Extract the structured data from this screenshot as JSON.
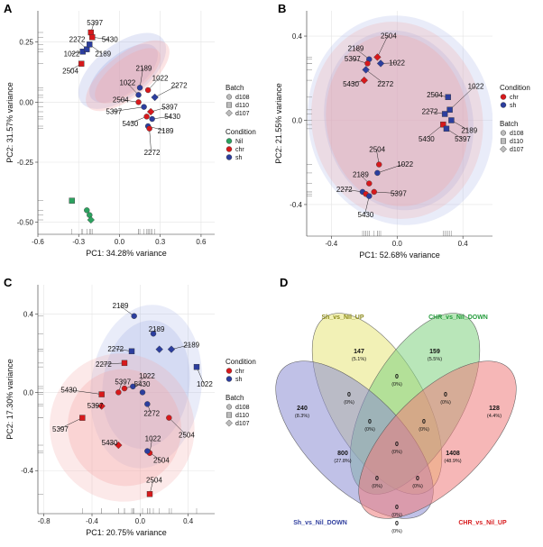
{
  "colors": {
    "nil": "#2ca25f",
    "chr": "#d7191c",
    "sh": "#2c3e9e",
    "chr_fill": "#f4a6a6",
    "sh_fill": "#a9b3e6"
  },
  "chart_data": [
    {
      "panel": "A",
      "type": "scatter",
      "xlabel": "PC1: 34.28% variance",
      "ylabel": "PC2: 31.57% variance",
      "xlim": [
        -0.6,
        0.7
      ],
      "ylim": [
        -0.55,
        0.38
      ],
      "xticks": [
        -0.6,
        -0.3,
        0.0,
        0.3,
        0.6
      ],
      "xtick_labels": [
        "-0.6",
        "-0.3",
        "0.0",
        "0.3",
        "0.6"
      ],
      "yticks": [
        -0.5,
        -0.25,
        0.0,
        0.25
      ],
      "ytick_labels": [
        "-0.50",
        "-0.25",
        "0.00",
        "0.25"
      ],
      "legend_batch": {
        "title": "Batch",
        "items": [
          "d108",
          "d110",
          "d107"
        ]
      },
      "legend_condition": {
        "title": "Condition",
        "items": [
          "Nil",
          "chr",
          "sh"
        ]
      },
      "ellipses": [
        {
          "cond": "sh",
          "cx": 0.02,
          "cy": 0.13,
          "rx": 0.38,
          "ry": 0.11,
          "angle": -38,
          "opacity": 0.3
        },
        {
          "cond": "sh",
          "cx": 0.03,
          "cy": 0.12,
          "rx": 0.3,
          "ry": 0.08,
          "angle": -38,
          "opacity": 0.35
        },
        {
          "cond": "chr",
          "cx": 0.06,
          "cy": 0.11,
          "rx": 0.37,
          "ry": 0.09,
          "angle": -38,
          "opacity": 0.3
        },
        {
          "cond": "chr",
          "cx": 0.06,
          "cy": 0.11,
          "rx": 0.29,
          "ry": 0.07,
          "angle": -38,
          "opacity": 0.3
        }
      ],
      "points": [
        {
          "x": -0.21,
          "y": 0.29,
          "cond": "chr",
          "batch": "d110",
          "label": "5397",
          "lx": -0.24,
          "ly": 0.32
        },
        {
          "x": -0.2,
          "y": 0.27,
          "cond": "chr",
          "batch": "d110",
          "label": "5430",
          "lx": -0.13,
          "ly": 0.25
        },
        {
          "x": -0.27,
          "y": 0.21,
          "cond": "sh",
          "batch": "d110",
          "label": "1022",
          "lx": -0.41,
          "ly": 0.19
        },
        {
          "x": -0.24,
          "y": 0.22,
          "cond": "sh",
          "batch": "d110",
          "label": "2272",
          "lx": -0.37,
          "ly": 0.25
        },
        {
          "x": -0.22,
          "y": 0.24,
          "cond": "sh",
          "batch": "d110",
          "label": "2189",
          "lx": -0.18,
          "ly": 0.19
        },
        {
          "x": -0.28,
          "y": 0.16,
          "cond": "chr",
          "batch": "d110",
          "label": "2504",
          "lx": -0.42,
          "ly": 0.12
        },
        {
          "x": 0.15,
          "y": 0.06,
          "cond": "sh",
          "batch": "d108",
          "label": "2189",
          "lx": 0.12,
          "ly": 0.13
        },
        {
          "x": 0.14,
          "y": 0.03,
          "cond": "sh",
          "batch": "d108",
          "label": "1022",
          "lx": 0.0,
          "ly": 0.07
        },
        {
          "x": 0.21,
          "y": 0.05,
          "cond": "chr",
          "batch": "d108",
          "label": "1022",
          "lx": 0.24,
          "ly": 0.09
        },
        {
          "x": 0.26,
          "y": 0.02,
          "cond": "sh",
          "batch": "d107",
          "label": "2272",
          "lx": 0.38,
          "ly": 0.06
        },
        {
          "x": 0.14,
          "y": 0.0,
          "cond": "chr",
          "batch": "d108",
          "label": "2504",
          "lx": -0.05,
          "ly": 0.0
        },
        {
          "x": 0.18,
          "y": -0.02,
          "cond": "sh",
          "batch": "d108",
          "label": "5397",
          "lx": -0.1,
          "ly": -0.05
        },
        {
          "x": 0.23,
          "y": -0.04,
          "cond": "chr",
          "batch": "d107",
          "label": "5397",
          "lx": 0.31,
          "ly": -0.03
        },
        {
          "x": 0.2,
          "y": -0.06,
          "cond": "chr",
          "batch": "d108",
          "label": "5430",
          "lx": 0.02,
          "ly": -0.1
        },
        {
          "x": 0.24,
          "y": -0.07,
          "cond": "sh",
          "batch": "d108",
          "label": "5430",
          "lx": 0.33,
          "ly": -0.07
        },
        {
          "x": 0.21,
          "y": -0.1,
          "cond": "sh",
          "batch": "d108",
          "label": "2189",
          "lx": 0.28,
          "ly": -0.13
        },
        {
          "x": 0.22,
          "y": -0.11,
          "cond": "chr",
          "batch": "d108",
          "label": "2272",
          "lx": 0.18,
          "ly": -0.22
        },
        {
          "x": -0.35,
          "y": -0.41,
          "cond": "nil",
          "batch": "d110"
        },
        {
          "x": -0.24,
          "y": -0.45,
          "cond": "nil",
          "batch": "d108"
        },
        {
          "x": -0.22,
          "y": -0.47,
          "cond": "nil",
          "batch": "d108"
        },
        {
          "x": -0.21,
          "y": -0.49,
          "cond": "nil",
          "batch": "d107"
        }
      ]
    },
    {
      "panel": "B",
      "type": "scatter",
      "xlabel": "PC1: 52.68% variance",
      "ylabel": "PC2: 21.55% variance",
      "xlim": [
        -0.55,
        0.58
      ],
      "ylim": [
        -0.55,
        0.52
      ],
      "xticks": [
        -0.4,
        0.0,
        0.4
      ],
      "xtick_labels": [
        "-0.4",
        "0.0",
        "0.4"
      ],
      "yticks": [
        -0.4,
        0.0,
        0.4
      ],
      "ytick_labels": [
        "-0.4",
        "0.0",
        "0.4"
      ],
      "legend_condition": {
        "title": "Condition",
        "items": [
          "chr",
          "sh"
        ]
      },
      "legend_batch": {
        "title": "Batch",
        "items": [
          "d108",
          "d110",
          "d107"
        ]
      },
      "ellipses": [
        {
          "cond": "sh",
          "cx": 0.02,
          "cy": 0.0,
          "rx": 0.56,
          "ry": 0.5,
          "angle": -12,
          "opacity": 0.25
        },
        {
          "cond": "sh",
          "cx": 0.01,
          "cy": 0.0,
          "rx": 0.45,
          "ry": 0.43,
          "angle": -12,
          "opacity": 0.3
        },
        {
          "cond": "chr",
          "cx": 0.0,
          "cy": 0.0,
          "rx": 0.52,
          "ry": 0.47,
          "angle": -10,
          "opacity": 0.25
        },
        {
          "cond": "chr",
          "cx": 0.0,
          "cy": 0.0,
          "rx": 0.43,
          "ry": 0.41,
          "angle": -10,
          "opacity": 0.3
        }
      ],
      "points": [
        {
          "x": -0.17,
          "y": 0.29,
          "cond": "sh",
          "batch": "d108",
          "label": "2189",
          "lx": -0.3,
          "ly": 0.33
        },
        {
          "x": -0.12,
          "y": 0.3,
          "cond": "chr",
          "batch": "d107",
          "label": "2504",
          "lx": -0.1,
          "ly": 0.39
        },
        {
          "x": -0.18,
          "y": 0.27,
          "cond": "chr",
          "batch": "d108",
          "label": "5397",
          "lx": -0.32,
          "ly": 0.28
        },
        {
          "x": -0.1,
          "y": 0.27,
          "cond": "sh",
          "batch": "d107",
          "label": "1022",
          "lx": -0.05,
          "ly": 0.26
        },
        {
          "x": -0.19,
          "y": 0.24,
          "cond": "sh",
          "batch": "d107",
          "label": "2272",
          "lx": -0.12,
          "ly": 0.16
        },
        {
          "x": -0.2,
          "y": 0.19,
          "cond": "chr",
          "batch": "d107",
          "label": "5430",
          "lx": -0.33,
          "ly": 0.16
        },
        {
          "x": 0.31,
          "y": 0.11,
          "cond": "sh",
          "batch": "d110",
          "label": "2504",
          "lx": 0.18,
          "ly": 0.11
        },
        {
          "x": 0.32,
          "y": 0.05,
          "cond": "sh",
          "batch": "d110",
          "label": "1022",
          "lx": 0.43,
          "ly": 0.15
        },
        {
          "x": 0.29,
          "y": 0.03,
          "cond": "sh",
          "batch": "d110",
          "label": "2272",
          "lx": 0.15,
          "ly": 0.03
        },
        {
          "x": 0.33,
          "y": 0.0,
          "cond": "sh",
          "batch": "d110",
          "label": "2189",
          "lx": 0.39,
          "ly": -0.06
        },
        {
          "x": 0.28,
          "y": -0.02,
          "cond": "chr",
          "batch": "d110",
          "label": "5430",
          "lx": 0.13,
          "ly": -0.1
        },
        {
          "x": 0.3,
          "y": -0.04,
          "cond": "sh",
          "batch": "d110",
          "label": "5397",
          "lx": 0.35,
          "ly": -0.1
        },
        {
          "x": -0.11,
          "y": -0.21,
          "cond": "chr",
          "batch": "d108",
          "label": "2504",
          "lx": -0.17,
          "ly": -0.15
        },
        {
          "x": -0.12,
          "y": -0.25,
          "cond": "sh",
          "batch": "d108",
          "label": "1022",
          "lx": 0.0,
          "ly": -0.22
        },
        {
          "x": -0.17,
          "y": -0.3,
          "cond": "chr",
          "batch": "d108",
          "label": "2189",
          "lx": -0.27,
          "ly": -0.27
        },
        {
          "x": -0.21,
          "y": -0.34,
          "cond": "sh",
          "batch": "d108",
          "label": "2272",
          "lx": -0.37,
          "ly": -0.34
        },
        {
          "x": -0.19,
          "y": -0.35,
          "cond": "chr",
          "batch": "d108"
        },
        {
          "x": -0.14,
          "y": -0.34,
          "cond": "chr",
          "batch": "d108",
          "label": "5397",
          "lx": -0.04,
          "ly": -0.36
        },
        {
          "x": -0.17,
          "y": -0.36,
          "cond": "sh",
          "batch": "d108",
          "label": "5430",
          "lx": -0.24,
          "ly": -0.46
        }
      ]
    },
    {
      "panel": "C",
      "type": "scatter",
      "xlabel": "PC1: 20.75% variance",
      "ylabel": "PC2: 17.30% variance",
      "xlim": [
        -0.85,
        0.62
      ],
      "ylim": [
        -0.62,
        0.55
      ],
      "xticks": [
        -0.8,
        -0.4,
        0.0,
        0.4
      ],
      "xtick_labels": [
        "-0.8",
        "-0.4",
        "0.0",
        "0.4"
      ],
      "yticks": [
        -0.4,
        0.0,
        0.4
      ],
      "ytick_labels": [
        "-0.4",
        "0.0",
        "0.4"
      ],
      "legend_condition": {
        "title": "Condition",
        "items": [
          "chr",
          "sh"
        ]
      },
      "legend_batch": {
        "title": "Batch",
        "items": [
          "d108",
          "d110",
          "d107"
        ]
      },
      "ellipses": [
        {
          "cond": "sh",
          "cx": 0.05,
          "cy": 0.03,
          "rx": 0.46,
          "ry": 0.42,
          "angle": 8,
          "opacity": 0.25
        },
        {
          "cond": "sh",
          "cx": 0.05,
          "cy": 0.04,
          "rx": 0.36,
          "ry": 0.33,
          "angle": 8,
          "opacity": 0.3
        },
        {
          "cond": "chr",
          "cx": -0.15,
          "cy": -0.18,
          "rx": 0.6,
          "ry": 0.38,
          "angle": -20,
          "opacity": 0.25
        },
        {
          "cond": "chr",
          "cx": -0.13,
          "cy": -0.18,
          "rx": 0.47,
          "ry": 0.3,
          "angle": -20,
          "opacity": 0.3
        }
      ],
      "points": [
        {
          "x": -0.05,
          "y": 0.39,
          "cond": "sh",
          "batch": "d108",
          "label": "2189",
          "lx": -0.23,
          "ly": 0.43
        },
        {
          "x": 0.11,
          "y": 0.3,
          "cond": "sh",
          "batch": "d108",
          "label": "2189",
          "lx": 0.07,
          "ly": 0.31
        },
        {
          "x": -0.07,
          "y": 0.21,
          "cond": "sh",
          "batch": "d110",
          "label": "2272",
          "lx": -0.27,
          "ly": 0.21
        },
        {
          "x": 0.16,
          "y": 0.22,
          "cond": "sh",
          "batch": "d107",
          "label": "",
          "lx": 0,
          "ly": 0
        },
        {
          "x": 0.26,
          "y": 0.22,
          "cond": "sh",
          "batch": "d107",
          "label": "2189",
          "lx": 0.36,
          "ly": 0.23
        },
        {
          "x": -0.13,
          "y": 0.15,
          "cond": "chr",
          "batch": "d110",
          "label": "2272",
          "lx": -0.37,
          "ly": 0.13
        },
        {
          "x": 0.47,
          "y": 0.13,
          "cond": "sh",
          "batch": "d110",
          "label": "1022",
          "lx": 0.47,
          "ly": 0.03
        },
        {
          "x": -0.06,
          "y": 0.03,
          "cond": "sh",
          "batch": "d108",
          "label": "1022",
          "lx": -0.01,
          "ly": 0.07
        },
        {
          "x": -0.32,
          "y": -0.01,
          "cond": "chr",
          "batch": "d110",
          "label": "5430",
          "lx": -0.66,
          "ly": 0.0
        },
        {
          "x": -0.18,
          "y": 0.0,
          "cond": "chr",
          "batch": "d108",
          "label": "5397",
          "lx": -0.21,
          "ly": 0.04
        },
        {
          "x": -0.13,
          "y": 0.02,
          "cond": "chr",
          "batch": "d108",
          "label": "5430",
          "lx": -0.05,
          "ly": 0.03
        },
        {
          "x": 0.02,
          "y": 0.0,
          "cond": "sh",
          "batch": "d108"
        },
        {
          "x": -0.32,
          "y": -0.07,
          "cond": "chr",
          "batch": "d107",
          "label": "5397",
          "lx": -0.44,
          "ly": -0.08
        },
        {
          "x": 0.06,
          "y": -0.06,
          "cond": "sh",
          "batch": "d108",
          "label": "2272",
          "lx": 0.03,
          "ly": -0.12
        },
        {
          "x": 0.24,
          "y": -0.13,
          "cond": "chr",
          "batch": "d108",
          "label": "2504",
          "lx": 0.32,
          "ly": -0.23
        },
        {
          "x": -0.48,
          "y": -0.13,
          "cond": "chr",
          "batch": "d110",
          "label": "5397",
          "lx": -0.73,
          "ly": -0.2
        },
        {
          "x": -0.18,
          "y": -0.27,
          "cond": "chr",
          "batch": "d107",
          "label": "5430",
          "lx": -0.32,
          "ly": -0.27
        },
        {
          "x": 0.08,
          "y": -0.31,
          "cond": "chr",
          "batch": "d108",
          "label": "1022",
          "lx": 0.04,
          "ly": -0.25
        },
        {
          "x": 0.06,
          "y": -0.3,
          "cond": "sh",
          "batch": "d108",
          "label": "2504",
          "lx": 0.11,
          "ly": -0.36
        },
        {
          "x": 0.08,
          "y": -0.52,
          "cond": "chr",
          "batch": "d110",
          "label": "2504",
          "lx": 0.05,
          "ly": -0.46
        }
      ]
    },
    {
      "panel": "D",
      "type": "venn",
      "sets": [
        {
          "name": "Sh_vs_Nil_UP",
          "color": "#e8e67a",
          "text_color": "#8c8a1c"
        },
        {
          "name": "CHR_vs_Nil_DOWN",
          "color": "#7fd17f",
          "text_color": "#249c3c"
        },
        {
          "name": "Sh_vs_Nil_DOWN",
          "color": "#8d8ed4",
          "text_color": "#2f3e9e"
        },
        {
          "name": "CHR_vs_Nil_UP",
          "color": "#ef7b7b",
          "text_color": "#d7191c"
        }
      ],
      "regions": [
        {
          "id": "sh_down_only",
          "count": "240",
          "pct": "(8.3%)",
          "bold": true
        },
        {
          "id": "sh_up_only",
          "count": "147",
          "pct": "(5.1%)",
          "bold": true
        },
        {
          "id": "chr_down_only",
          "count": "159",
          "pct": "(5.5%)",
          "bold": true
        },
        {
          "id": "chr_up_only",
          "count": "128",
          "pct": "(4.4%)",
          "bold": true
        },
        {
          "id": "shdown_chrdown",
          "count": "800",
          "pct": "(27.8%)",
          "bold": true
        },
        {
          "id": "shup_chrup",
          "count": "1408",
          "pct": "(48.9%)",
          "bold": true
        },
        {
          "id": "shup_shdown",
          "count": "0",
          "pct": "(0%)"
        },
        {
          "id": "shup_chrdown",
          "count": "0",
          "pct": "(0%)"
        },
        {
          "id": "chrdown_chrup",
          "count": "0",
          "pct": "(0%)"
        },
        {
          "id": "shup_shdown_chrdown",
          "count": "0",
          "pct": "(0%)"
        },
        {
          "id": "shup_chrdown_chrup",
          "count": "0",
          "pct": "(0%)"
        },
        {
          "id": "all_four",
          "count": "0",
          "pct": "(0%)"
        },
        {
          "id": "shdown_chrdown_chrup",
          "count": "0",
          "pct": "(0%)"
        },
        {
          "id": "shup_shdown_chrup",
          "count": "0",
          "pct": "(0%)"
        },
        {
          "id": "shdown_chrup",
          "count": "0",
          "pct": "(0%)"
        },
        {
          "id": "bottom_pair",
          "count": "0",
          "pct": "(0%)"
        }
      ]
    }
  ],
  "panel_letters": [
    "A",
    "B",
    "C",
    "D"
  ]
}
